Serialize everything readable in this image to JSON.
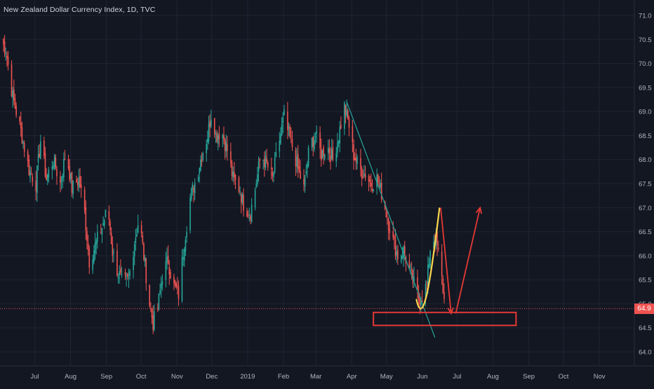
{
  "header": {
    "title": "New Zealand Dollar Currency Index, 1D, TVC"
  },
  "last_price": {
    "label": "64.9",
    "value": 64.9,
    "color": "#ef5350"
  },
  "colors": {
    "background": "#131722",
    "up": "#26a69a",
    "down": "#ef5350",
    "grid": "#1f2433",
    "axis_text": "#b2b5be"
  },
  "chart_data": {
    "type": "candlestick",
    "title": "New Zealand Dollar Currency Index, 1D, TVC",
    "x_axis": {
      "labels": [
        "Jul",
        "Aug",
        "Sep",
        "Oct",
        "Nov",
        "Dec",
        "2019",
        "Feb",
        "Mar",
        "Apr",
        "May",
        "Jun",
        "Jul",
        "Aug",
        "Sep",
        "Oct",
        "Nov"
      ],
      "range": [
        "2018-06-01",
        "2019-11-30"
      ]
    },
    "y_axis": {
      "ticks": [
        "71.0",
        "70.5",
        "70.0",
        "69.5",
        "69.0",
        "68.5",
        "68.0",
        "67.5",
        "67.0",
        "66.5",
        "66.0",
        "65.5",
        "65.0",
        "64.5",
        "64.0"
      ],
      "ylim": [
        63.7,
        71.3
      ]
    },
    "grid": true,
    "close_path": [
      [
        "2018-06-01",
        70.5
      ],
      [
        "2018-06-06",
        70.3
      ],
      [
        "2018-06-12",
        69.3
      ],
      [
        "2018-06-19",
        68.6
      ],
      [
        "2018-06-26",
        67.8
      ],
      [
        "2018-07-02",
        67.5
      ],
      [
        "2018-07-06",
        68.4
      ],
      [
        "2018-07-11",
        67.6
      ],
      [
        "2018-07-17",
        68.0
      ],
      [
        "2018-07-23",
        67.5
      ],
      [
        "2018-07-28",
        68.2
      ],
      [
        "2018-08-02",
        67.4
      ],
      [
        "2018-08-08",
        67.6
      ],
      [
        "2018-08-13",
        66.9
      ],
      [
        "2018-08-17",
        65.9
      ],
      [
        "2018-08-22",
        66.2
      ],
      [
        "2018-08-28",
        66.6
      ],
      [
        "2018-09-02",
        67.0
      ],
      [
        "2018-09-06",
        66.1
      ],
      [
        "2018-09-10",
        65.7
      ],
      [
        "2018-09-15",
        65.4
      ],
      [
        "2018-09-20",
        65.5
      ],
      [
        "2018-09-25",
        66.3
      ],
      [
        "2018-09-29",
        66.8
      ],
      [
        "2018-10-04",
        65.8
      ],
      [
        "2018-10-08",
        65.0
      ],
      [
        "2018-10-11",
        64.6
      ],
      [
        "2018-10-15",
        64.9
      ],
      [
        "2018-10-19",
        65.6
      ],
      [
        "2018-10-24",
        65.9
      ],
      [
        "2018-10-28",
        65.4
      ],
      [
        "2018-11-02",
        65.2
      ],
      [
        "2018-11-07",
        66.3
      ],
      [
        "2018-11-12",
        67.2
      ],
      [
        "2018-11-17",
        67.6
      ],
      [
        "2018-11-22",
        68.1
      ],
      [
        "2018-11-27",
        68.5
      ],
      [
        "2018-12-01",
        69.1
      ],
      [
        "2018-12-04",
        68.5
      ],
      [
        "2018-12-09",
        68.6
      ],
      [
        "2018-12-14",
        68.2
      ],
      [
        "2018-12-19",
        67.6
      ],
      [
        "2018-12-24",
        67.4
      ],
      [
        "2018-12-29",
        67.0
      ],
      [
        "2019-01-03",
        66.9
      ],
      [
        "2019-01-07",
        67.4
      ],
      [
        "2019-01-12",
        68.1
      ],
      [
        "2019-01-17",
        67.9
      ],
      [
        "2019-01-22",
        67.6
      ],
      [
        "2019-01-27",
        68.3
      ],
      [
        "2019-02-01",
        68.9
      ],
      [
        "2019-02-04",
        68.6
      ],
      [
        "2019-02-09",
        68.2
      ],
      [
        "2019-02-13",
        67.8
      ],
      [
        "2019-02-18",
        67.4
      ],
      [
        "2019-02-23",
        68.3
      ],
      [
        "2019-02-28",
        68.5
      ],
      [
        "2019-03-05",
        68.1
      ],
      [
        "2019-03-10",
        68.3
      ],
      [
        "2019-03-15",
        68.0
      ],
      [
        "2019-03-20",
        68.5
      ],
      [
        "2019-03-25",
        69.1
      ],
      [
        "2019-03-29",
        68.7
      ],
      [
        "2019-04-02",
        68.1
      ],
      [
        "2019-04-07",
        67.8
      ],
      [
        "2019-04-12",
        67.7
      ],
      [
        "2019-04-17",
        67.5
      ],
      [
        "2019-04-22",
        67.6
      ],
      [
        "2019-04-26",
        67.3
      ],
      [
        "2019-05-01",
        66.8
      ],
      [
        "2019-05-06",
        66.3
      ],
      [
        "2019-05-10",
        66.0
      ],
      [
        "2019-05-15",
        66.1
      ],
      [
        "2019-05-20",
        65.7
      ],
      [
        "2019-05-24",
        65.4
      ],
      [
        "2019-05-28",
        65.1
      ],
      [
        "2019-06-01",
        65.2
      ],
      [
        "2019-06-04",
        65.4
      ],
      [
        "2019-06-08",
        66.4
      ],
      [
        "2019-06-12",
        66.3
      ],
      [
        "2019-06-15",
        65.9
      ],
      [
        "2019-06-19",
        65.1
      ]
    ],
    "annotations": [
      {
        "type": "trendline",
        "color": "#26a69a",
        "points": [
          [
            "2019-03-27",
            69.2
          ],
          [
            "2019-06-11",
            64.3
          ]
        ]
      },
      {
        "type": "curve",
        "color": "#ffd54f",
        "points": [
          [
            "2019-05-26",
            65.1
          ],
          [
            "2019-06-01",
            64.7
          ],
          [
            "2019-06-08",
            65.6
          ],
          [
            "2019-06-15",
            67.0
          ]
        ]
      },
      {
        "type": "arrow",
        "color": "#e53935",
        "points": [
          [
            "2019-06-16",
            67.0
          ],
          [
            "2019-06-25",
            64.8
          ]
        ]
      },
      {
        "type": "arrow",
        "color": "#e53935",
        "points": [
          [
            "2019-06-29",
            64.8
          ],
          [
            "2019-07-20",
            67.0
          ]
        ]
      },
      {
        "type": "rectangle",
        "color": "#e53935",
        "points": [
          [
            "2019-04-19",
            64.82
          ],
          [
            "2019-08-20",
            64.55
          ]
        ]
      },
      {
        "type": "horizontal_line",
        "color": "#ef5350",
        "value": 64.9
      }
    ]
  }
}
